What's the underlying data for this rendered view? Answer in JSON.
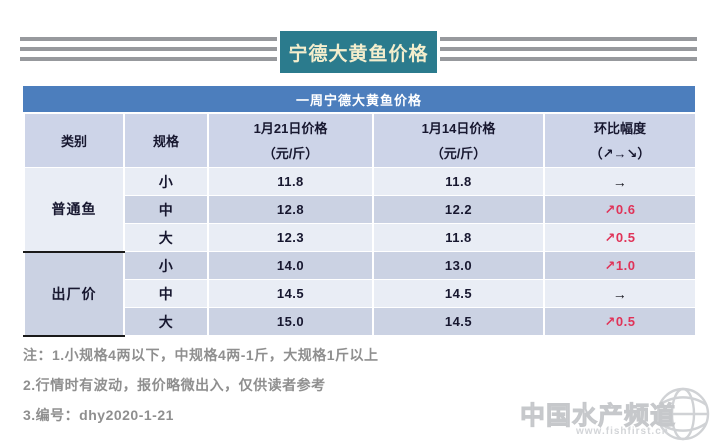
{
  "banner": {
    "title": "宁德大黄鱼价格",
    "bg_color": "#2b7b8d",
    "text_color": "#f4eecd",
    "stripe_color": "#97999d"
  },
  "table": {
    "title": "一周宁德大黄鱼价格",
    "title_bg_color": "#4c7ebd",
    "header_bg_color": "#cdd4e8",
    "row_light_color": "#e9edf5",
    "row_dark_color": "#cbd2e3",
    "up_color": "#e03358",
    "columns": [
      "类别",
      "规格",
      "1月21日价格",
      "1月14日价格",
      "环比幅度"
    ],
    "column_subs": {
      "price_current": "（元/斤）",
      "price_previous": "（元/斤）",
      "change": "（↗→↘）"
    },
    "groups": [
      {
        "category": "普通鱼",
        "rows": [
          {
            "spec": "小",
            "price_0121": "11.8",
            "price_0114": "11.8",
            "change": "→",
            "change_dir": "flat"
          },
          {
            "spec": "中",
            "price_0121": "12.8",
            "price_0114": "12.2",
            "change": "↗0.6",
            "change_dir": "up"
          },
          {
            "spec": "大",
            "price_0121": "12.3",
            "price_0114": "11.8",
            "change": "↗0.5",
            "change_dir": "up"
          }
        ]
      },
      {
        "category": "出厂价",
        "rows": [
          {
            "spec": "小",
            "price_0121": "14.0",
            "price_0114": "13.0",
            "change": "↗1.0",
            "change_dir": "up"
          },
          {
            "spec": "中",
            "price_0121": "14.5",
            "price_0114": "14.5",
            "change": "→",
            "change_dir": "flat"
          },
          {
            "spec": "大",
            "price_0121": "15.0",
            "price_0114": "14.5",
            "change": "↗0.5",
            "change_dir": "up"
          }
        ]
      }
    ]
  },
  "notes": [
    "注：1.小规格4两以下，中规格4两-1斤，大规格1斤以上",
    "2.行情时有波动，报价略微出入，仅供读者参考",
    "3.编号：dhy2020-1-21"
  ],
  "watermark": {
    "text": "中国水产频道",
    "url": "www.fishfirst.cn"
  },
  "chart_data": {
    "type": "table",
    "title": "一周宁德大黄鱼价格",
    "columns": [
      "类别",
      "规格",
      "1月21日价格（元/斤）",
      "1月14日价格（元/斤）",
      "环比幅度（↗→↘）"
    ],
    "rows": [
      [
        "普通鱼",
        "小",
        11.8,
        11.8,
        "→ 0"
      ],
      [
        "普通鱼",
        "中",
        12.8,
        12.2,
        "↗ +0.6"
      ],
      [
        "普通鱼",
        "大",
        12.3,
        11.8,
        "↗ +0.5"
      ],
      [
        "出厂价",
        "小",
        14.0,
        13.0,
        "↗ +1.0"
      ],
      [
        "出厂价",
        "中",
        14.5,
        14.5,
        "→ 0"
      ],
      [
        "出厂价",
        "大",
        15.0,
        14.5,
        "↗ +0.5"
      ]
    ],
    "notes": [
      "小规格4两以下，中规格4两-1斤，大规格1斤以上",
      "行情时有波动，报价略微出入，仅供读者参考",
      "编号：dhy2020-1-21"
    ]
  }
}
